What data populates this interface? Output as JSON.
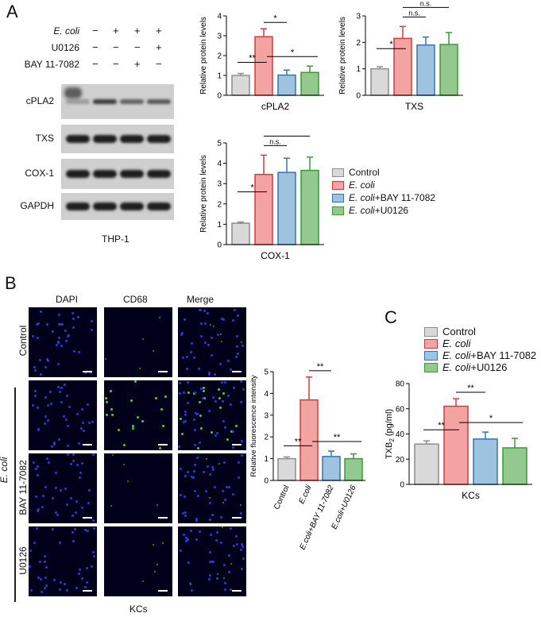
{
  "colors": {
    "control": "#d9d9d9",
    "ecoli": "#f4a3a3",
    "bay": "#9dc3e0",
    "u0126": "#93c98f",
    "control_edge": "#8c8c8c",
    "ecoli_edge": "#d23c3c",
    "bay_edge": "#3a73a8",
    "u0126_edge": "#3a9a3a"
  },
  "panelA": {
    "letter": "A",
    "conditions": [
      {
        "label": "E. coli",
        "italic": true,
        "signs": [
          "−",
          "+",
          "+",
          "+"
        ]
      },
      {
        "label": "U0126",
        "italic": false,
        "signs": [
          "−",
          "−",
          "−",
          "+"
        ]
      },
      {
        "label": "BAY 11-7082",
        "italic": false,
        "signs": [
          "−",
          "−",
          "+",
          "−"
        ]
      }
    ],
    "blots": [
      "cPLA2",
      "TXS",
      "COX-1",
      "GAPDH"
    ],
    "cell_line": "THP-1",
    "legend": [
      "Control",
      "E. coli",
      "E. coli+BAY 11-7082",
      "E. coli+U0126"
    ]
  },
  "panelB": {
    "letter": "B",
    "columns": [
      "DAPI",
      "CD68",
      "Merge"
    ],
    "row_labels": [
      "Control",
      "",
      "BAY 11-7082",
      "U0126"
    ],
    "group_label": "E. coli",
    "footer": "KCs"
  },
  "panelC": {
    "letter": "C",
    "xlabel": "KCs"
  },
  "chart_data": [
    {
      "type": "bar",
      "id": "cpla2",
      "title": "",
      "xlabel": "cPLA2",
      "ylabel": "Relative protein levels",
      "ylim": [
        0,
        4
      ],
      "yticks": [
        0,
        1,
        2,
        3,
        4
      ],
      "categories": [
        "Control",
        "E. coli",
        "E. coli+BAY 11-7082",
        "E. coli+U0126"
      ],
      "values": [
        1.0,
        2.95,
        1.02,
        1.15
      ],
      "errors": [
        0.1,
        0.4,
        0.25,
        0.32
      ],
      "significance": [
        "**",
        "*",
        "*"
      ]
    },
    {
      "type": "bar",
      "id": "txs",
      "title": "",
      "xlabel": "TXS",
      "ylabel": "Relative protein levels",
      "ylim": [
        0,
        3
      ],
      "yticks": [
        0,
        1,
        2,
        3
      ],
      "categories": [
        "Control",
        "E. coli",
        "E. coli+BAY 11-7082",
        "E. coli+U0126"
      ],
      "values": [
        1.0,
        2.15,
        1.9,
        1.92
      ],
      "errors": [
        0.08,
        0.45,
        0.3,
        0.45
      ],
      "significance": [
        "*",
        "n.s.",
        "n.s."
      ]
    },
    {
      "type": "bar",
      "id": "cox1",
      "title": "",
      "xlabel": "COX-1",
      "ylabel": "Relative protein levels",
      "ylim": [
        0,
        5
      ],
      "yticks": [
        0,
        1,
        2,
        3,
        4,
        5
      ],
      "categories": [
        "Control",
        "E. coli",
        "E. coli+BAY 11-7082",
        "E. coli+U0126"
      ],
      "values": [
        1.05,
        3.45,
        3.55,
        3.65
      ],
      "errors": [
        0.06,
        0.95,
        0.7,
        0.65
      ],
      "significance": [
        "*",
        "n.s.",
        "n.s."
      ]
    },
    {
      "type": "bar",
      "id": "fluor",
      "title": "",
      "xlabel": "",
      "ylabel": "Relative fluorescence intensity",
      "ylim": [
        0,
        5
      ],
      "yticks": [
        0,
        1,
        2,
        3,
        4,
        5
      ],
      "categories": [
        "Control",
        "E.coli",
        "E.coli+BAY 11-7082",
        "E.coli+U0126"
      ],
      "values": [
        1.0,
        3.7,
        1.1,
        1.0
      ],
      "errors": [
        0.08,
        1.05,
        0.25,
        0.22
      ],
      "significance": [
        "**",
        "**",
        "**"
      ]
    },
    {
      "type": "bar",
      "id": "txb2",
      "title": "",
      "xlabel": "KCs",
      "ylabel": "TXB2 (pg/ml)",
      "ylim": [
        0,
        80
      ],
      "yticks": [
        0,
        20,
        40,
        60,
        80
      ],
      "categories": [
        "Control",
        "E. coli",
        "E. coli+BAY 11-7082",
        "E. coli+U0126"
      ],
      "values": [
        32,
        62,
        36,
        29
      ],
      "errors": [
        2.5,
        6,
        5.5,
        7.5
      ],
      "significance": [
        "**",
        "**",
        "*"
      ]
    }
  ]
}
